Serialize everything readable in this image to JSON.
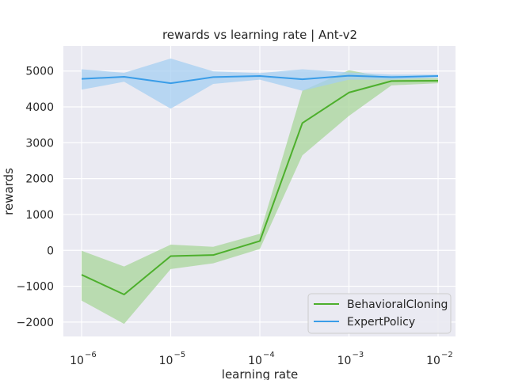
{
  "chart_data": {
    "type": "line",
    "title": "rewards vs learning rate | Ant-v2",
    "xlabel": "learning rate",
    "ylabel": "rewards",
    "xscale": "log",
    "xlim": [
      1e-06,
      0.01
    ],
    "ylim": [
      -2400,
      5700
    ],
    "grid": true,
    "legend_position": "bottom-right",
    "x_ticks": [
      {
        "base": "10",
        "exp": "−6",
        "value": 1e-06
      },
      {
        "base": "10",
        "exp": "−5",
        "value": 1e-05
      },
      {
        "base": "10",
        "exp": "−4",
        "value": 0.0001
      },
      {
        "base": "10",
        "exp": "−3",
        "value": 0.001
      },
      {
        "base": "10",
        "exp": "−2",
        "value": 0.01
      }
    ],
    "y_ticks": [
      {
        "label": "−2000",
        "value": -2000
      },
      {
        "label": "−1000",
        "value": -1000
      },
      {
        "label": "0",
        "value": 0
      },
      {
        "label": "1000",
        "value": 1000
      },
      {
        "label": "2000",
        "value": 2000
      },
      {
        "label": "3000",
        "value": 3000
      },
      {
        "label": "4000",
        "value": 4000
      },
      {
        "label": "5000",
        "value": 5000
      }
    ],
    "x": [
      1e-06,
      3e-06,
      1e-05,
      3e-05,
      0.0001,
      0.0003,
      0.001,
      0.003,
      0.01
    ],
    "series": [
      {
        "name": "BehavioralCloning",
        "color": "#4daf2c",
        "band_color": "#a8d699",
        "values": [
          -680,
          -1230,
          -160,
          -130,
          260,
          3550,
          4400,
          4720,
          4730
        ],
        "lower": [
          -1400,
          -2050,
          -520,
          -360,
          40,
          2650,
          3750,
          4600,
          4660
        ],
        "upper": [
          -10,
          -450,
          160,
          100,
          460,
          4450,
          5020,
          4800,
          4800
        ]
      },
      {
        "name": "ExpertPolicy",
        "color": "#3a9de8",
        "band_color": "#a6cff2",
        "values": [
          4780,
          4840,
          4660,
          4830,
          4860,
          4770,
          4870,
          4830,
          4860
        ],
        "lower": [
          4480,
          4700,
          3950,
          4640,
          4760,
          4450,
          4760,
          4760,
          4820
        ],
        "upper": [
          5050,
          4950,
          5350,
          4990,
          4940,
          5050,
          4960,
          4900,
          4900
        ]
      }
    ]
  }
}
